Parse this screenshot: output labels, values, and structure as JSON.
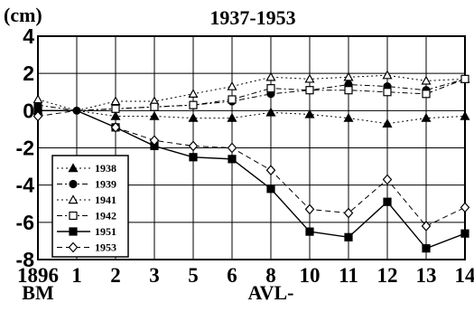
{
  "chart_data": {
    "type": "line",
    "title": "1937-1953",
    "y_unit_label": "(cm)",
    "ylim": [
      -8,
      4
    ],
    "yticks": [
      4,
      2,
      0,
      -2,
      -4,
      -6,
      -8
    ],
    "ytick_labels": [
      "4",
      "2",
      "0",
      "-2",
      "-4",
      "-6",
      "-8"
    ],
    "categories": [
      "1896",
      "1",
      "2",
      "3",
      "5",
      "6",
      "8",
      "10",
      "11",
      "12",
      "13",
      "14"
    ],
    "x_sublabels": [
      {
        "text": "BM",
        "under_category": 0
      },
      {
        "text": "AVL-",
        "under_category": 6
      }
    ],
    "grid": true,
    "legend_position": "lower-left",
    "series": [
      {
        "name": "1938",
        "line_style": "dotted",
        "marker": "filled-triangle",
        "values": [
          0.0,
          0.0,
          -0.3,
          -0.3,
          -0.4,
          -0.4,
          -0.1,
          -0.2,
          -0.4,
          -0.7,
          -0.4,
          -0.3
        ]
      },
      {
        "name": "1939",
        "line_style": "dash-dot",
        "marker": "filled-circle",
        "values": [
          0.3,
          0.0,
          0.1,
          0.2,
          0.3,
          0.5,
          0.9,
          1.1,
          1.4,
          1.3,
          1.1,
          1.7
        ]
      },
      {
        "name": "1941",
        "line_style": "dotted",
        "marker": "open-triangle",
        "values": [
          0.6,
          0.0,
          0.5,
          0.5,
          0.9,
          1.3,
          1.8,
          1.7,
          1.8,
          1.9,
          1.6,
          1.7
        ]
      },
      {
        "name": "1942",
        "line_style": "dash-dot",
        "marker": "open-square",
        "values": [
          0.0,
          0.0,
          0.1,
          0.2,
          0.3,
          0.6,
          1.2,
          1.1,
          1.1,
          1.0,
          0.9,
          1.7
        ]
      },
      {
        "name": "1951",
        "line_style": "solid",
        "marker": "filled-square",
        "values": [
          0.0,
          0.0,
          -0.9,
          -1.9,
          -2.5,
          -2.6,
          -4.2,
          -6.5,
          -6.8,
          -4.9,
          -7.4,
          -6.6
        ]
      },
      {
        "name": "1953",
        "line_style": "dashed",
        "marker": "open-diamond",
        "values": [
          -0.3,
          0.0,
          -0.9,
          -1.6,
          -1.9,
          -2.0,
          -3.2,
          -5.3,
          -5.5,
          -3.7,
          -6.2,
          -5.2
        ]
      }
    ]
  }
}
